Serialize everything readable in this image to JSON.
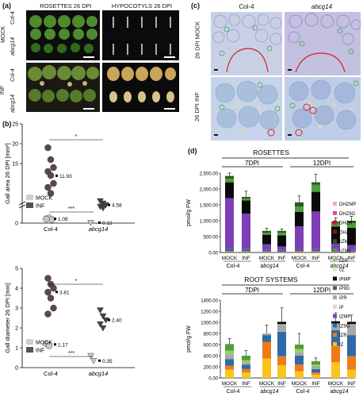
{
  "panel_a": {
    "label": "(a)",
    "col_titles": [
      "ROSETTES 26 DPI",
      "HYPOCOTYLS 26 DPI"
    ],
    "groups": [
      "MOCK",
      "INF"
    ],
    "rows": [
      "Col-4",
      "abcg14",
      "Col-4",
      "abcg14"
    ]
  },
  "panel_b": {
    "label": "(b)",
    "charts": [
      {
        "ylabel": "Gall area 26 DPI [mm²]",
        "yticks": [
          "0",
          "5",
          "10",
          "15",
          "20",
          "25"
        ],
        "categories": [
          "Col-4",
          "abcg14"
        ],
        "mean_labels": [
          "1.08",
          "11.93",
          "0.12",
          "4.58"
        ],
        "sig": [
          "***",
          "*",
          "**",
          "**"
        ],
        "legend": [
          "MOCK",
          "INF"
        ]
      },
      {
        "ylabel": "Gall diameter 26 DPI [mm]",
        "yticks": [
          "0",
          "1",
          "2",
          "3",
          "4",
          "5"
        ],
        "categories": [
          "Col-4",
          "abcg14"
        ],
        "mean_labels": [
          "1.17",
          "3.81",
          "0.35",
          "2.40"
        ],
        "sig": [
          "***",
          "*",
          "***"
        ],
        "legend": [
          "MOCK",
          "INF"
        ]
      }
    ]
  },
  "panel_c": {
    "label": "(c)",
    "col_titles": [
      "Col-4",
      "abcg14"
    ],
    "row_titles": [
      "26 DPI MOCK",
      "26 DPI INF"
    ]
  },
  "panel_d": {
    "label": "(d)",
    "ylabel": "pmol/g FW",
    "legend": [
      "DHZMP",
      "DHZ9G",
      "DHZR",
      "DHZ",
      "cZMP",
      "cZ9G",
      "cZR",
      "cZ",
      "iPMP",
      "iP9G",
      "iPR",
      "iP",
      "tZMP",
      "tZ9G",
      "tZR",
      "tZ"
    ],
    "legend_colors": [
      "#f2a6d6",
      "#e0479a",
      "#c2182b",
      "#7a1420",
      "#275c1a",
      "#4f9e3a",
      "#9ccc66",
      "#d8edc2",
      "#0a0a0a",
      "#5a5a5a",
      "#a8a8a8",
      "#d8d8d8",
      "#7d3fb5",
      "#2e6aa8",
      "#ef7a1a",
      "#f9c41e"
    ]
  },
  "chart_data": [
    {
      "type": "bar",
      "title": "ROSETTES",
      "groups": [
        "7DPI",
        "12DPI"
      ],
      "categories": [
        "MOCK",
        "INF",
        "MOCK",
        "INF",
        "MOCK",
        "INF",
        "MOCK",
        "INF"
      ],
      "genotypes": [
        "Col-4",
        "abcg14",
        "Col-4",
        "abcg14"
      ],
      "yticks": [
        "0.00",
        "500.00",
        "1,000.00",
        "1,500.00",
        "2,000.00",
        "2,500.00"
      ],
      "ylabel": "pmol/g FW",
      "ylim": [
        0,
        2500
      ],
      "stacks": [
        {
          "tZ": 0,
          "tZR": 40,
          "tZ9G": 90,
          "tZMP": 1580,
          "iPMP": 500,
          "cZ9G": 110,
          "cZMP": 90
        },
        {
          "tZ": 0,
          "tZR": 40,
          "tZ9G": 80,
          "tZMP": 1100,
          "iPMP": 420,
          "cZ9G": 60,
          "cZMP": 50
        },
        {
          "tZ": 0,
          "tZR": 30,
          "tZ9G": 60,
          "tZMP": 170,
          "iPMP": 300,
          "cZ9G": 60,
          "cZMP": 60
        },
        {
          "tZ": 0,
          "tZR": 20,
          "tZ9G": 60,
          "tZMP": 110,
          "iPMP": 350,
          "cZ9G": 80,
          "cZMP": 60
        },
        {
          "tZ": 0,
          "tZR": 40,
          "tZ9G": 60,
          "tZMP": 720,
          "iPMP": 460,
          "cZ9G": 170,
          "cZMP": 130
        },
        {
          "tZ": 0,
          "tZR": 40,
          "tZ9G": 70,
          "tZMP": 1180,
          "iPMP": 620,
          "cZ9G": 220,
          "cZMP": 80
        },
        {
          "tZ": 0,
          "tZR": 30,
          "tZ9G": 50,
          "tZMP": 200,
          "iPMP": 540,
          "cZ9G": 100,
          "cZMP": 50
        },
        {
          "tZ": 0,
          "tZR": 30,
          "tZ9G": 50,
          "tZMP": 150,
          "iPMP": 550,
          "cZ9G": 140,
          "cZMP": 80
        }
      ],
      "error": [
        280,
        180,
        80,
        60,
        200,
        260,
        120,
        140
      ]
    },
    {
      "type": "bar",
      "title": "ROOT SYSTEMS",
      "groups": [
        "7DPI",
        "12DPI"
      ],
      "categories": [
        "MOCK",
        "INF",
        "MOCK",
        "INF",
        "MOCK",
        "INF",
        "MOCK",
        "INF"
      ],
      "genotypes": [
        "Col-4",
        "abcg14",
        "Col-4",
        "abcg14"
      ],
      "yticks": [
        "0.00",
        "200.00",
        "400.00",
        "600.00",
        "800.00",
        "1000.00",
        "1200.00",
        "1400.00"
      ],
      "ylabel": "pmol/g FW",
      "ylim": [
        0,
        1400
      ],
      "stacks": [
        {
          "tZ": 150,
          "tZR": 70,
          "tZ9G": 120,
          "iPR": 80,
          "cZ9G": 120,
          "cZR": 70
        },
        {
          "tZ": 100,
          "tZR": 60,
          "tZ9G": 80,
          "iPR": 40,
          "cZ9G": 80,
          "cZR": 40
        },
        {
          "tZ": 350,
          "tZR": 300,
          "tZ9G": 120,
          "iPR": 30
        },
        {
          "tZ": 230,
          "tZR": 160,
          "tZ9G": 440,
          "iPR": 140,
          "iPMP": 40
        },
        {
          "tZ": 120,
          "tZR": 120,
          "tZ9G": 160,
          "iPR": 60,
          "cZ9G": 80,
          "cZR": 60
        },
        {
          "tZ": 60,
          "tZR": 40,
          "tZ9G": 60,
          "iPR": 40,
          "cZ9G": 60,
          "cZR": 40
        },
        {
          "tZ": 280,
          "tZR": 300,
          "tZ9G": 280,
          "iPR": 120,
          "iPMP": 40
        },
        {
          "tZ": 150,
          "tZR": 240,
          "tZ9G": 380,
          "iPR": 200,
          "iPMP": 40
        }
      ],
      "error": [
        100,
        90,
        150,
        250,
        200,
        60,
        150,
        120
      ]
    }
  ]
}
